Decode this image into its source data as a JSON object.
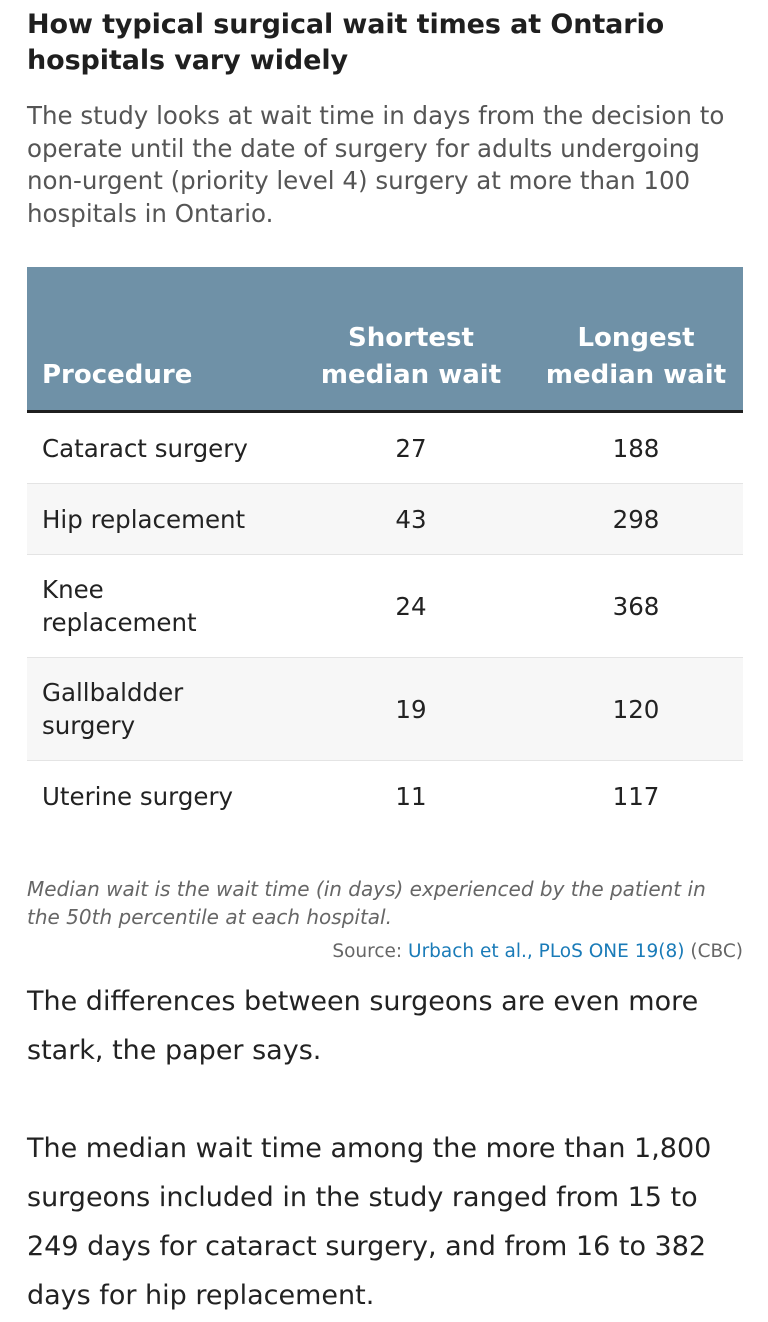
{
  "header": {
    "title": "How typical surgical wait times at Ontario hospitals vary widely",
    "subtitle": "The study looks at wait time in days from the decision to operate until the date of surgery for adults undergoing non-urgent (priority level 4) surgery at more than 100 hospitals in Ontario."
  },
  "table": {
    "columns": [
      "Procedure",
      "Shortest median wait",
      "Longest median wait"
    ],
    "rows": [
      {
        "procedure": "Cataract surgery",
        "shortest": "27",
        "longest": "188"
      },
      {
        "procedure": "Hip replacement",
        "shortest": "43",
        "longest": "298"
      },
      {
        "procedure": "Knee replacement",
        "shortest": "24",
        "longest": "368"
      },
      {
        "procedure": "Gallbaldder surgery",
        "shortest": "19",
        "longest": "120"
      },
      {
        "procedure": "Uterine surgery",
        "shortest": "11",
        "longest": "117"
      }
    ]
  },
  "note": "Median wait is the wait time (in days) experienced by the patient in the 50th percentile at each hospital.",
  "source": {
    "prefix": "Source: ",
    "link_text": "Urbach et al., PLoS ONE 19(8)",
    "suffix": " (CBC)"
  },
  "article": {
    "paragraph_1": "The differences between surgeons are even more stark, the paper says.",
    "paragraph_2": "The median wait time among the more than 1,800 surgeons included in the study ranged from 15 to 249 days for cataract surgery, and from 16 to 382 days for hip replacement."
  },
  "colors": {
    "header_bg": "#6f91a7",
    "link": "#1a7bb8",
    "row_shade": "#f7f7f7"
  }
}
